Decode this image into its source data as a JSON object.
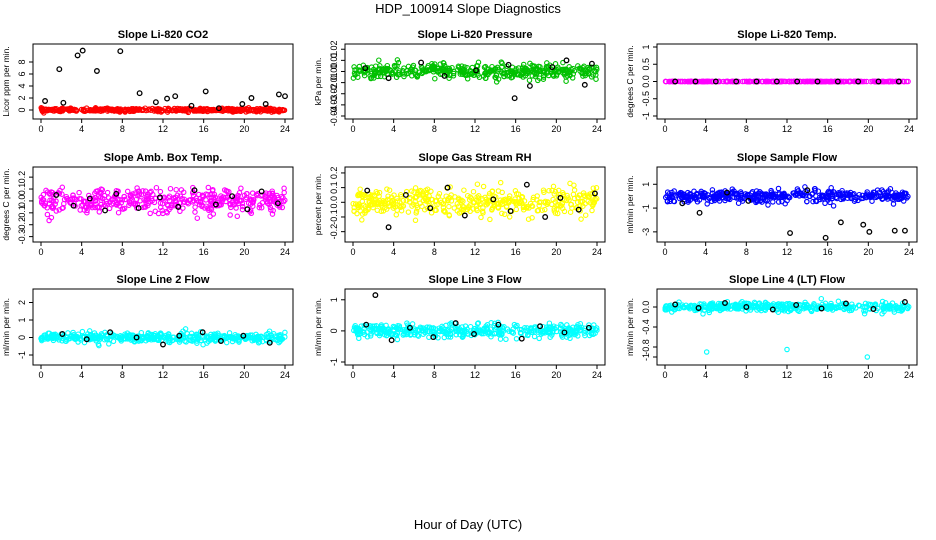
{
  "title": "HDP_100914  Slope Diagnostics",
  "xlabel": "Hour of Day (UTC)",
  "chart_data": [
    {
      "type": "scatter",
      "title": "Slope Li-820 CO2",
      "ylabel": "Licor ppm per min.",
      "xlim": [
        0,
        24
      ],
      "ylim": [
        -1,
        10.5
      ],
      "xticks": [
        0,
        4,
        8,
        12,
        16,
        20,
        24
      ],
      "yticks": [
        0,
        2,
        4,
        6,
        8
      ],
      "colored_series": {
        "name": "all samples",
        "color": "#ff0000",
        "center": 0,
        "spread": 0.25,
        "count": 420
      },
      "black_points": [
        [
          0.4,
          1.5
        ],
        [
          1.8,
          6.8
        ],
        [
          2.2,
          1.2
        ],
        [
          3.6,
          9.1
        ],
        [
          4.1,
          9.9
        ],
        [
          5.5,
          6.5
        ],
        [
          7.8,
          9.8
        ],
        [
          9.7,
          2.8
        ],
        [
          11.3,
          1.3
        ],
        [
          12.4,
          1.9
        ],
        [
          13.2,
          2.3
        ],
        [
          14.8,
          0.7
        ],
        [
          16.2,
          3.1
        ],
        [
          17.5,
          0.3
        ],
        [
          19.8,
          1.0
        ],
        [
          20.7,
          2.0
        ],
        [
          22.1,
          1.0
        ],
        [
          23.4,
          2.6
        ],
        [
          24,
          2.3
        ]
      ]
    },
    {
      "type": "scatter",
      "title": "Slope Li-820 Pressure",
      "ylabel": "kPa per min.",
      "xlim": [
        0,
        24
      ],
      "ylim": [
        -0.04,
        0.022
      ],
      "xticks": [
        0,
        4,
        8,
        12,
        16,
        20,
        24
      ],
      "yticks": [
        -0.04,
        -0.03,
        -0.02,
        -0.01,
        0.0,
        0.01,
        0.02
      ],
      "colored_series": {
        "name": "all samples",
        "color": "#00c000",
        "center": 0,
        "spread": 0.006,
        "count": 420
      },
      "black_points": [
        [
          1.2,
          0.003
        ],
        [
          3.5,
          -0.006
        ],
        [
          6.7,
          0.008
        ],
        [
          9.0,
          -0.004
        ],
        [
          12.1,
          0.001
        ],
        [
          15.3,
          0.006
        ],
        [
          15.9,
          -0.024
        ],
        [
          17.4,
          -0.013
        ],
        [
          19.6,
          0.004
        ],
        [
          21.0,
          0.01
        ],
        [
          22.8,
          -0.012
        ],
        [
          23.5,
          0.007
        ]
      ]
    },
    {
      "type": "scatter",
      "title": "Slope Li-820 Temp.",
      "ylabel": "degrees C per min.",
      "xlim": [
        0,
        24
      ],
      "ylim": [
        -1,
        1
      ],
      "xticks": [
        0,
        4,
        8,
        12,
        16,
        20,
        24
      ],
      "yticks": [
        -1.0,
        -0.5,
        0.0,
        0.5,
        1.0
      ],
      "colored_series": {
        "name": "all samples",
        "color": "#ff00ff",
        "center": 0,
        "spread": 0.005,
        "count": 300
      },
      "black_points": [
        [
          1,
          0
        ],
        [
          3,
          0
        ],
        [
          5,
          0
        ],
        [
          7,
          0
        ],
        [
          9,
          0
        ],
        [
          11,
          0
        ],
        [
          13,
          0
        ],
        [
          15,
          0
        ],
        [
          17,
          0
        ],
        [
          19,
          0
        ],
        [
          21,
          0
        ],
        [
          23,
          0
        ]
      ]
    },
    {
      "type": "scatter",
      "title": "Slope Amb. Box Temp.",
      "ylabel": "degrees C per min.",
      "xlim": [
        0,
        24
      ],
      "ylim": [
        -0.32,
        0.26
      ],
      "xticks": [
        0,
        4,
        8,
        12,
        16,
        20,
        24
      ],
      "yticks": [
        -0.3,
        -0.2,
        -0.1,
        0.0,
        0.1,
        0.2
      ],
      "colored_series": {
        "name": "all samples",
        "color": "#ff00ff",
        "center": 0,
        "spread": 0.09,
        "count": 420
      },
      "black_points": [
        [
          1.5,
          0.05
        ],
        [
          3.2,
          -0.04
        ],
        [
          4.8,
          0.02
        ],
        [
          6.3,
          -0.08
        ],
        [
          7.4,
          0.06
        ],
        [
          9.6,
          -0.06
        ],
        [
          11.7,
          0.03
        ],
        [
          13.5,
          -0.05
        ],
        [
          15.1,
          0.09
        ],
        [
          17.2,
          -0.03
        ],
        [
          18.8,
          0.04
        ],
        [
          20.3,
          -0.07
        ],
        [
          21.7,
          0.08
        ],
        [
          23.3,
          -0.02
        ]
      ]
    },
    {
      "type": "scatter",
      "title": "Slope Gas Stream RH",
      "ylabel": "percent per min.",
      "xlim": [
        0,
        24
      ],
      "ylim": [
        -0.25,
        0.22
      ],
      "xticks": [
        0,
        4,
        8,
        12,
        16,
        20,
        24
      ],
      "yticks": [
        -0.2,
        -0.1,
        0.0,
        0.1,
        0.2
      ],
      "colored_series": {
        "name": "all samples",
        "color": "#ffff00",
        "center": 0,
        "spread": 0.09,
        "count": 420
      },
      "black_points": [
        [
          1.4,
          0.08
        ],
        [
          3.5,
          -0.17
        ],
        [
          5.2,
          0.05
        ],
        [
          7.6,
          -0.04
        ],
        [
          9.3,
          0.1
        ],
        [
          11.0,
          -0.09
        ],
        [
          13.8,
          0.02
        ],
        [
          15.5,
          -0.06
        ],
        [
          17.1,
          0.12
        ],
        [
          18.9,
          -0.1
        ],
        [
          20.4,
          0.03
        ],
        [
          22.2,
          -0.05
        ],
        [
          23.8,
          0.06
        ]
      ]
    },
    {
      "type": "scatter",
      "title": "Slope Sample Flow",
      "ylabel": "ml/min per min.",
      "xlim": [
        0,
        24
      ],
      "ylim": [
        -3.6,
        2.2
      ],
      "xticks": [
        0,
        4,
        8,
        12,
        16,
        20,
        24
      ],
      "yticks": [
        -3,
        -1,
        1
      ],
      "colored_series": {
        "name": "all samples",
        "color": "#0000ff",
        "center": 0,
        "spread": 0.45,
        "count": 420
      },
      "black_points": [
        [
          1.7,
          -0.6
        ],
        [
          3.4,
          -1.4
        ],
        [
          6.1,
          0.3
        ],
        [
          8.2,
          -0.4
        ],
        [
          12.3,
          -3.1
        ],
        [
          14.0,
          0.5
        ],
        [
          15.8,
          -3.5
        ],
        [
          17.3,
          -2.2
        ],
        [
          19.5,
          -2.4
        ],
        [
          20.1,
          -3.0
        ],
        [
          22.6,
          -2.9
        ],
        [
          23.6,
          -2.9
        ]
      ]
    },
    {
      "type": "scatter",
      "title": "Slope Line 2 Flow",
      "ylabel": "ml/min per min.",
      "xlim": [
        0,
        24
      ],
      "ylim": [
        -1.4,
        2.6
      ],
      "xticks": [
        0,
        4,
        8,
        12,
        16,
        20,
        24
      ],
      "yticks": [
        -1,
        0,
        1,
        2
      ],
      "colored_series": {
        "name": "all samples",
        "color": "#00ffff",
        "center": 0,
        "spread": 0.25,
        "count": 420
      },
      "black_points": [
        [
          2.1,
          0.2
        ],
        [
          4.5,
          -0.1
        ],
        [
          6.8,
          0.3
        ],
        [
          9.4,
          0.0
        ],
        [
          12.0,
          -0.4
        ],
        [
          13.6,
          0.1
        ],
        [
          15.9,
          0.3
        ],
        [
          17.7,
          -0.2
        ],
        [
          19.9,
          0.1
        ],
        [
          22.5,
          -0.3
        ]
      ]
    },
    {
      "type": "scatter",
      "title": "Slope Line 3 Flow",
      "ylabel": "ml/min per min.",
      "xlim": [
        0,
        24
      ],
      "ylim": [
        -1,
        1.25
      ],
      "xticks": [
        0,
        4,
        8,
        12,
        16,
        20,
        24
      ],
      "yticks": [
        -1.0,
        0.0,
        1.0
      ],
      "colored_series": {
        "name": "all samples",
        "color": "#00ffff",
        "center": 0,
        "spread": 0.2,
        "count": 420
      },
      "black_points": [
        [
          1.3,
          0.2
        ],
        [
          2.2,
          1.15
        ],
        [
          3.8,
          -0.3
        ],
        [
          5.6,
          0.1
        ],
        [
          7.9,
          -0.2
        ],
        [
          10.1,
          0.25
        ],
        [
          11.9,
          -0.1
        ],
        [
          14.3,
          0.2
        ],
        [
          16.6,
          -0.25
        ],
        [
          18.4,
          0.15
        ],
        [
          20.8,
          -0.05
        ],
        [
          23.2,
          0.1
        ]
      ]
    },
    {
      "type": "scatter",
      "title": "Slope Line 4 (LT) Flow",
      "ylabel": "ml/min per min.",
      "xlim": [
        0,
        24
      ],
      "ylim": [
        -1.1,
        0.3
      ],
      "xticks": [
        0,
        4,
        8,
        12,
        16,
        20,
        24
      ],
      "yticks": [
        -1.0,
        -0.8,
        -0.4,
        0.0
      ],
      "colored_series": {
        "name": "all samples",
        "color": "#00ffff",
        "center": 0,
        "spread": 0.08,
        "count": 420,
        "extra_points": [
          [
            4.1,
            -0.9
          ],
          [
            12.0,
            -0.85
          ],
          [
            19.9,
            -1.0
          ]
        ]
      },
      "black_points": [
        [
          1.0,
          0.05
        ],
        [
          3.3,
          -0.02
        ],
        [
          5.9,
          0.08
        ],
        [
          8.0,
          0.0
        ],
        [
          10.6,
          -0.05
        ],
        [
          12.9,
          0.04
        ],
        [
          15.4,
          -0.03
        ],
        [
          17.8,
          0.07
        ],
        [
          20.5,
          -0.04
        ],
        [
          23.6,
          0.1
        ]
      ]
    }
  ]
}
